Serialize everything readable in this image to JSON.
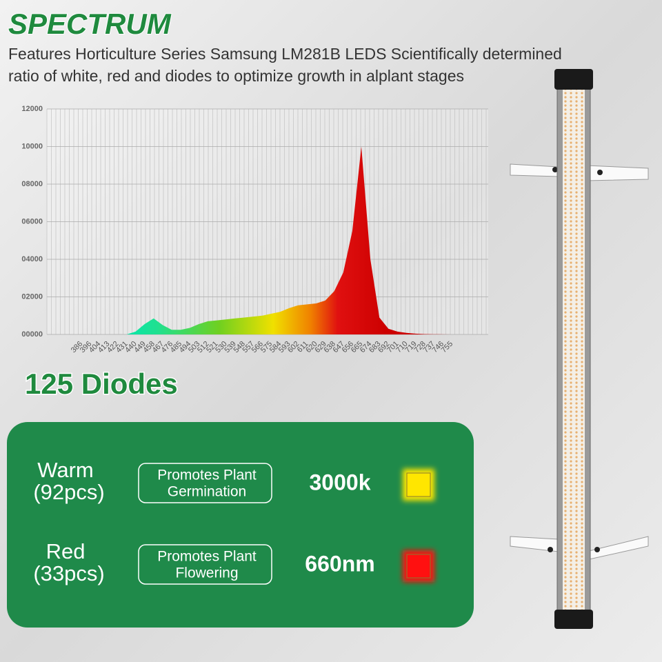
{
  "header": {
    "title": "SPECTRUM",
    "description": [
      "Features Horticulture Series Samsung LM281B LEDS Scientifically determined",
      "ratio of white, red and diodes to optimize growth in alplant stages"
    ]
  },
  "chart_data": {
    "type": "area",
    "categories": [
      "386",
      "396",
      "404",
      "413",
      "422",
      "431",
      "440",
      "449",
      "458",
      "467",
      "476",
      "485",
      "494",
      "503",
      "512",
      "521",
      "530",
      "539",
      "548",
      "557",
      "566",
      "575",
      "584",
      "593",
      "602",
      "611",
      "620",
      "629",
      "638",
      "647",
      "656",
      "665",
      "674",
      "683",
      "692",
      "701",
      "710",
      "719",
      "728",
      "737",
      "746",
      "755"
    ],
    "values": [
      0,
      0,
      0,
      0,
      0,
      0,
      150,
      550,
      850,
      500,
      250,
      250,
      350,
      550,
      700,
      750,
      800,
      850,
      900,
      950,
      1000,
      1100,
      1200,
      1400,
      1550,
      1600,
      1650,
      1800,
      2300,
      3300,
      5500,
      10000,
      4000,
      900,
      300,
      150,
      80,
      40,
      20,
      10,
      5,
      0
    ],
    "ylim": [
      0,
      12000
    ],
    "yticks": [
      {
        "value": 0,
        "label": "00000"
      },
      {
        "value": 2000,
        "label": "02000"
      },
      {
        "value": 4000,
        "label": "04000"
      },
      {
        "value": 6000,
        "label": "06000"
      },
      {
        "value": 8000,
        "label": "08000"
      },
      {
        "value": 10000,
        "label": "10000"
      },
      {
        "value": 12000,
        "label": "12000"
      }
    ],
    "grid": true
  },
  "diodes": {
    "heading": "125 Diodes",
    "rows": [
      {
        "name": "Warm",
        "count": "(92pcs)",
        "effect": [
          "Promotes Plant",
          "Germination"
        ],
        "spec": "3000k",
        "color": "#ffe600"
      },
      {
        "name": "Red",
        "count": "(33pcs)",
        "effect": [
          "Promotes Plant",
          "Flowering"
        ],
        "spec": "660nm",
        "color": "#ff1010"
      }
    ]
  }
}
